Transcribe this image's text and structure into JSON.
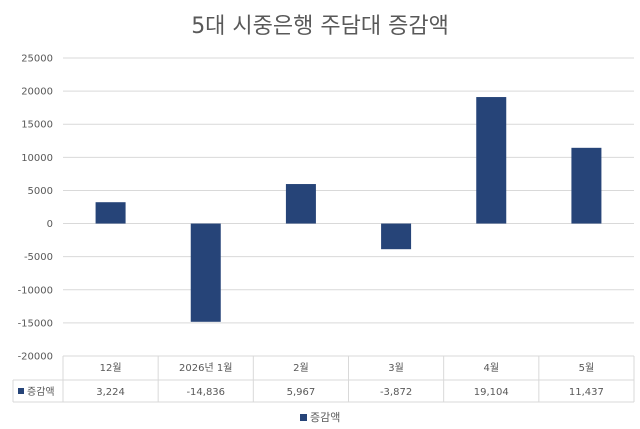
{
  "chart_data": {
    "type": "bar",
    "title": "5대 시중은행 주담대 증감액",
    "categories": [
      "12월",
      "2026년 1월",
      "2월",
      "3월",
      "4월",
      "5월"
    ],
    "series": [
      {
        "name": "증감액",
        "values": [
          3224,
          -14836,
          5967,
          -3872,
          19104,
          11437
        ],
        "labels": [
          "3,224",
          "-14,836",
          "5,967",
          "-3,872",
          "19,104",
          "11,437"
        ],
        "color": "#264478"
      }
    ],
    "ylim": [
      -20000,
      25000
    ],
    "yticks": [
      25000,
      20000,
      15000,
      10000,
      5000,
      0,
      -5000,
      -10000,
      -15000,
      -20000
    ],
    "grid": true,
    "legend": "bottom",
    "data_table": true
  }
}
